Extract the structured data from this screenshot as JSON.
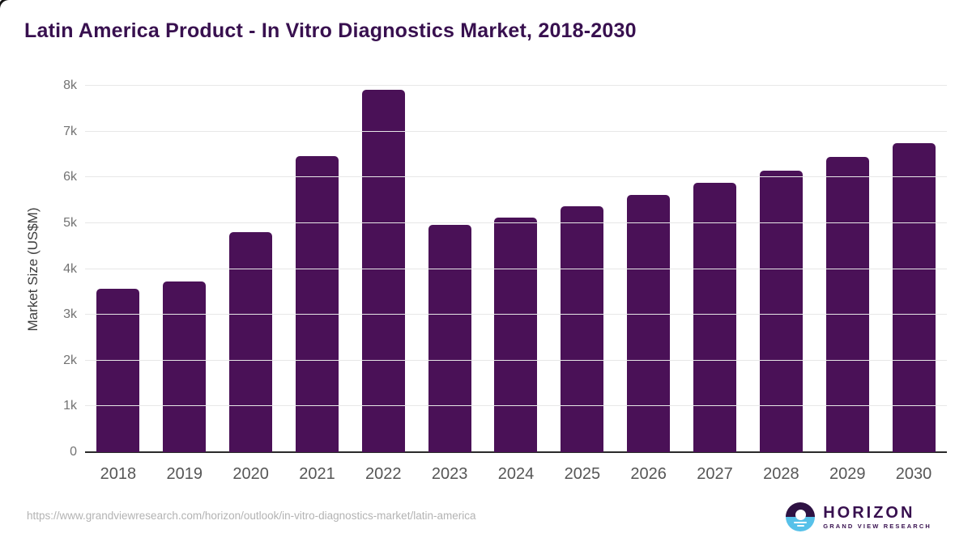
{
  "title": "Latin America Product - In Vitro Diagnostics Market, 2018-2030",
  "chart_data": {
    "type": "bar",
    "title": "Latin America Product - In Vitro Diagnostics Market, 2018-2030",
    "categories": [
      "2018",
      "2019",
      "2020",
      "2021",
      "2022",
      "2023",
      "2024",
      "2025",
      "2026",
      "2027",
      "2028",
      "2029",
      "2030"
    ],
    "values": [
      3560,
      3720,
      4800,
      6470,
      7920,
      4960,
      5120,
      5370,
      5620,
      5880,
      6140,
      6450,
      6740
    ],
    "xlabel": "",
    "ylabel": "Market Size (US$M)",
    "ylim": [
      0,
      8000
    ],
    "ytick_step": 1000,
    "ytick_labels": [
      "0",
      "1k",
      "2k",
      "3k",
      "4k",
      "5k",
      "6k",
      "7k",
      "8k"
    ],
    "grid": true,
    "legend": false,
    "bar_color": "#4a1157"
  },
  "footer": {
    "source_url": "https://www.grandviewresearch.com/horizon/outlook/in-vitro-diagnostics-market/latin-america",
    "logo": {
      "name": "HORIZON",
      "subtitle": "GRAND VIEW RESEARCH",
      "icon": "horizon-sun-over-water-icon"
    }
  },
  "colors": {
    "accent_purple": "#38104f",
    "accent_purple_dark": "#2e1243",
    "bar": "#4a1157",
    "logo_blue": "#57c1e9",
    "grid": "#e7e7e7",
    "axis_line": "#2a2a2a",
    "tick_text": "#737373",
    "xlabel_text": "#565656",
    "axis_title_text": "#3d3d3d",
    "url_text": "#b3b3b3"
  }
}
